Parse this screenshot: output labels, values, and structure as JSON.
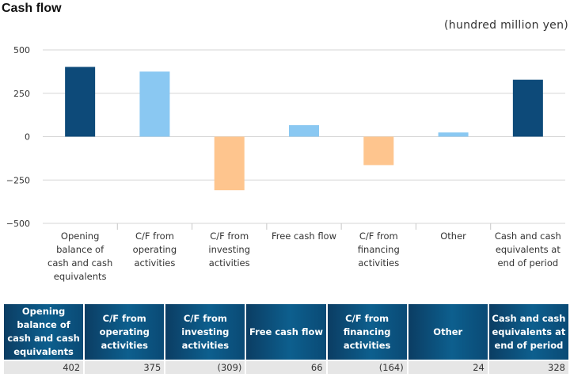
{
  "title": "Cash flow",
  "unit": "(hundred million yen)",
  "chart_data": {
    "type": "bar",
    "categories": [
      "Opening balance of cash and cash equivalents",
      "C/F from operating activities",
      "C/F from investing activities",
      "Free cash flow",
      "C/F from financing activities",
      "Other",
      "Cash and cash equivalents at end of period"
    ],
    "values": [
      402,
      375,
      -309,
      66,
      -164,
      24,
      328
    ],
    "ylim": [
      -500,
      500
    ],
    "yticks": [
      500,
      250,
      0,
      -250,
      -500
    ],
    "ytick_labels": [
      "500",
      "250",
      "0",
      "−250",
      "−500"
    ],
    "colors": [
      "#0d4a79",
      "#8ac8f2",
      "#fec58e",
      "#8ac8f2",
      "#fec58e",
      "#8ac8f2",
      "#0d4a79"
    ],
    "grid": true
  },
  "table": {
    "headers": [
      "Opening balance of cash and cash equivalents",
      "C/F from operating activities",
      "C/F from investing activities",
      "Free cash flow",
      "C/F from financing activities",
      "Other",
      "Cash and cash equivalents at end of period"
    ],
    "values": [
      "402",
      "375",
      "(309)",
      "66",
      "(164)",
      "24",
      "328"
    ]
  }
}
